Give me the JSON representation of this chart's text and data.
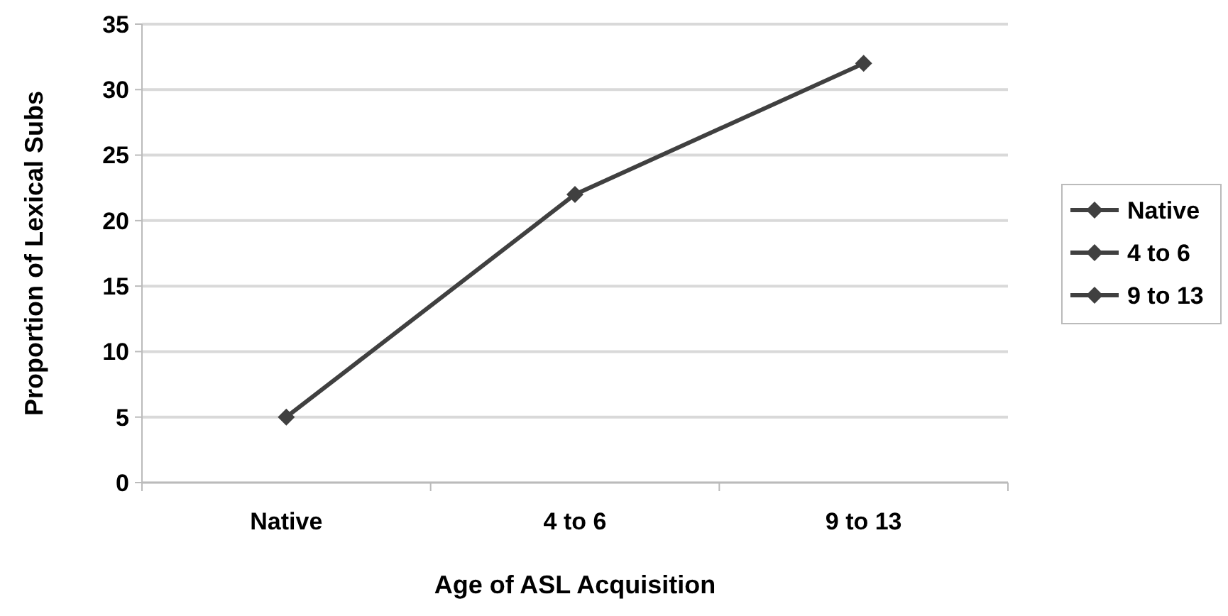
{
  "chart_data": {
    "type": "line",
    "xlabel": "Age of ASL Acquisition",
    "ylabel": "Proportion of Lexical Subs",
    "categories": [
      "Native",
      "4 to 6",
      "9 to 13"
    ],
    "series": [
      {
        "color": "#404040",
        "values": [
          5,
          22,
          32
        ],
        "marker": "none"
      },
      {
        "type": "scatter",
        "name": "Native",
        "color": "#404040",
        "values": [
          5,
          null,
          null
        ],
        "marker": "diamond"
      },
      {
        "type": "scatter",
        "name": "4 to 6",
        "color": "#404040",
        "values": [
          null,
          22,
          null
        ],
        "marker": "diamond"
      },
      {
        "type": "scatter",
        "name": "9 to 13",
        "color": "#404040",
        "values": [
          null,
          null,
          32
        ],
        "marker": "diamond"
      }
    ],
    "ylim": [
      0,
      35
    ],
    "yticks": [
      0,
      5,
      10,
      15,
      20,
      25,
      30,
      35
    ],
    "grid": "y",
    "legend": "right",
    "line_style": "solid"
  }
}
